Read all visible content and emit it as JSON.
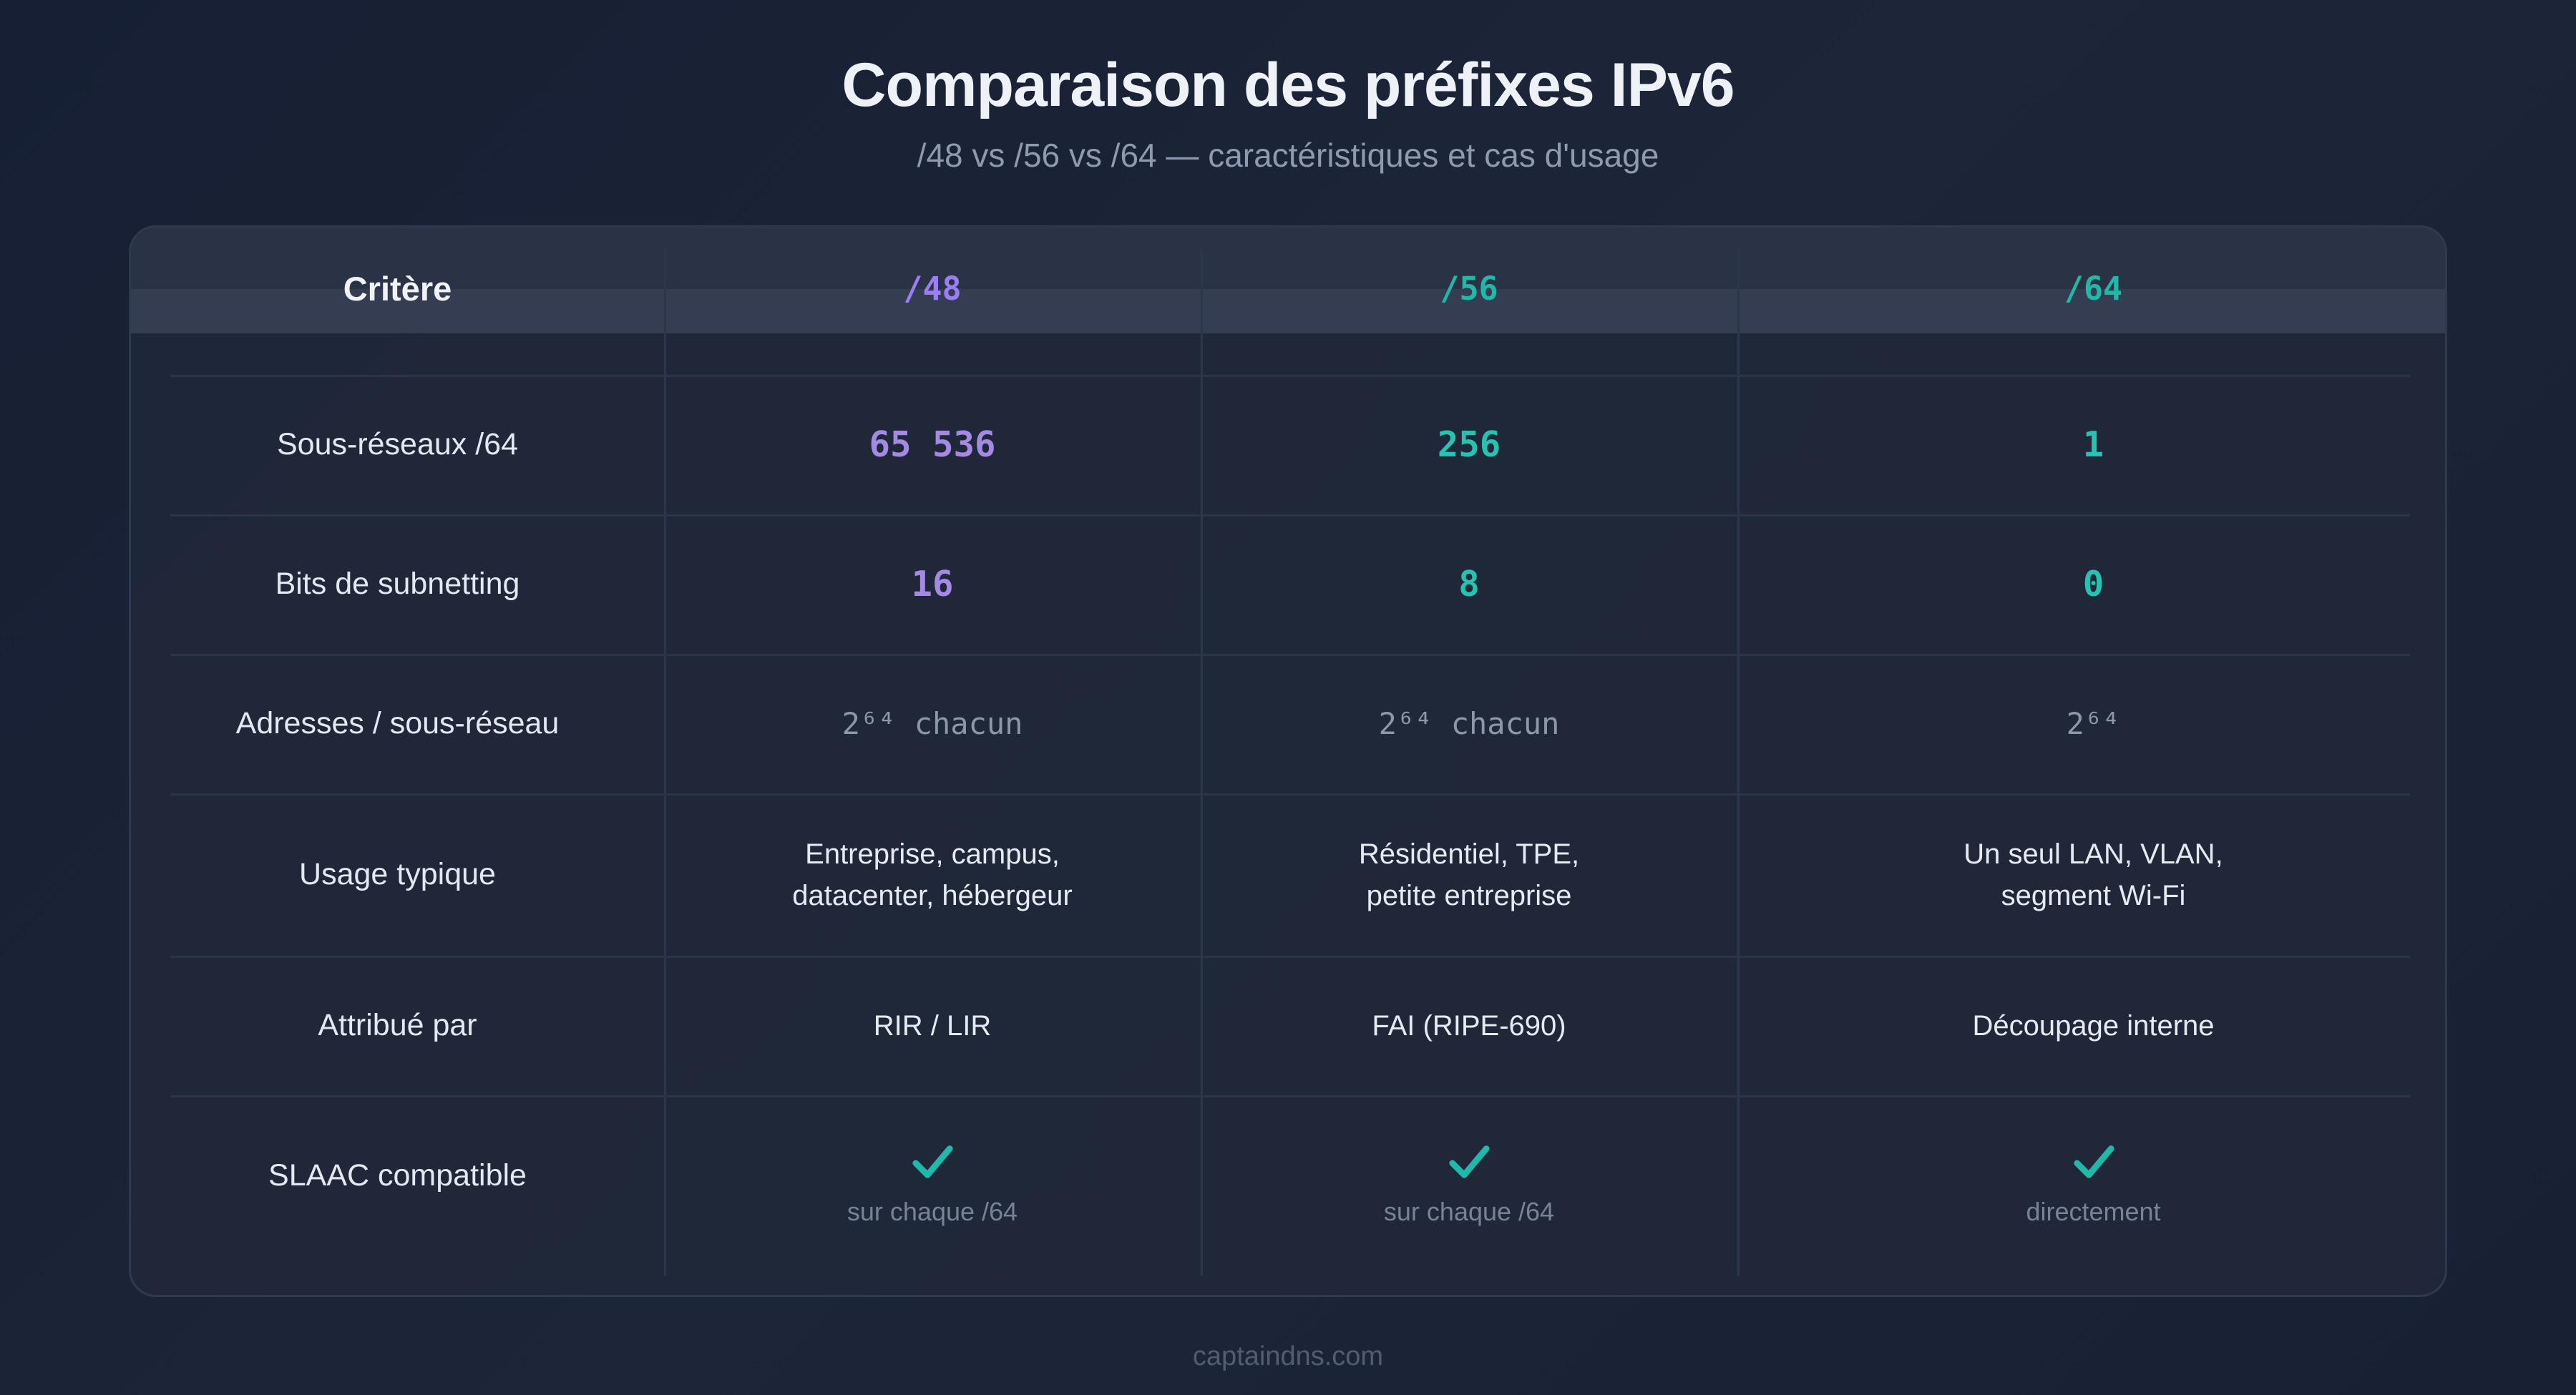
{
  "title": "Comparaison des préfixes IPv6",
  "subtitle": "/48 vs /56 vs /64 — caractéristiques et cas d'usage",
  "footer": "captaindns.com",
  "colors": {
    "purple": "#9b7ef5",
    "teal": "#20b8a8",
    "value_purple": "#a48ae2",
    "value_teal": "#26c2b2"
  },
  "table": {
    "header": {
      "criterion": "Critère",
      "p48": "/48",
      "p56": "/56",
      "p64": "/64"
    },
    "rows": {
      "subnets": {
        "label": "Sous-réseaux /64",
        "p48": "65 536",
        "p56": "256",
        "p64": "1"
      },
      "bits": {
        "label": "Bits de subnetting",
        "p48": "16",
        "p56": "8",
        "p64": "0"
      },
      "addresses": {
        "label": "Adresses / sous-réseau",
        "p48": "2⁶⁴ chacun",
        "p56": "2⁶⁴ chacun",
        "p64": "2⁶⁴"
      },
      "usage": {
        "label": "Usage typique",
        "p48": [
          "Entreprise, campus,",
          "datacenter, hébergeur"
        ],
        "p56": [
          "Résidentiel, TPE,",
          "petite entreprise"
        ],
        "p64": [
          "Un seul LAN, VLAN,",
          "segment Wi-Fi"
        ]
      },
      "assigned": {
        "label": "Attribué par",
        "p48": "RIR / LIR",
        "p56": "FAI (RIPE-690)",
        "p64": "Découpage interne"
      },
      "slaac": {
        "label": "SLAAC compatible",
        "p48": {
          "icon": "check-icon",
          "note": "sur chaque /64"
        },
        "p56": {
          "icon": "check-icon",
          "note": "sur chaque /64"
        },
        "p64": {
          "icon": "check-icon",
          "note": "directement"
        }
      }
    }
  }
}
